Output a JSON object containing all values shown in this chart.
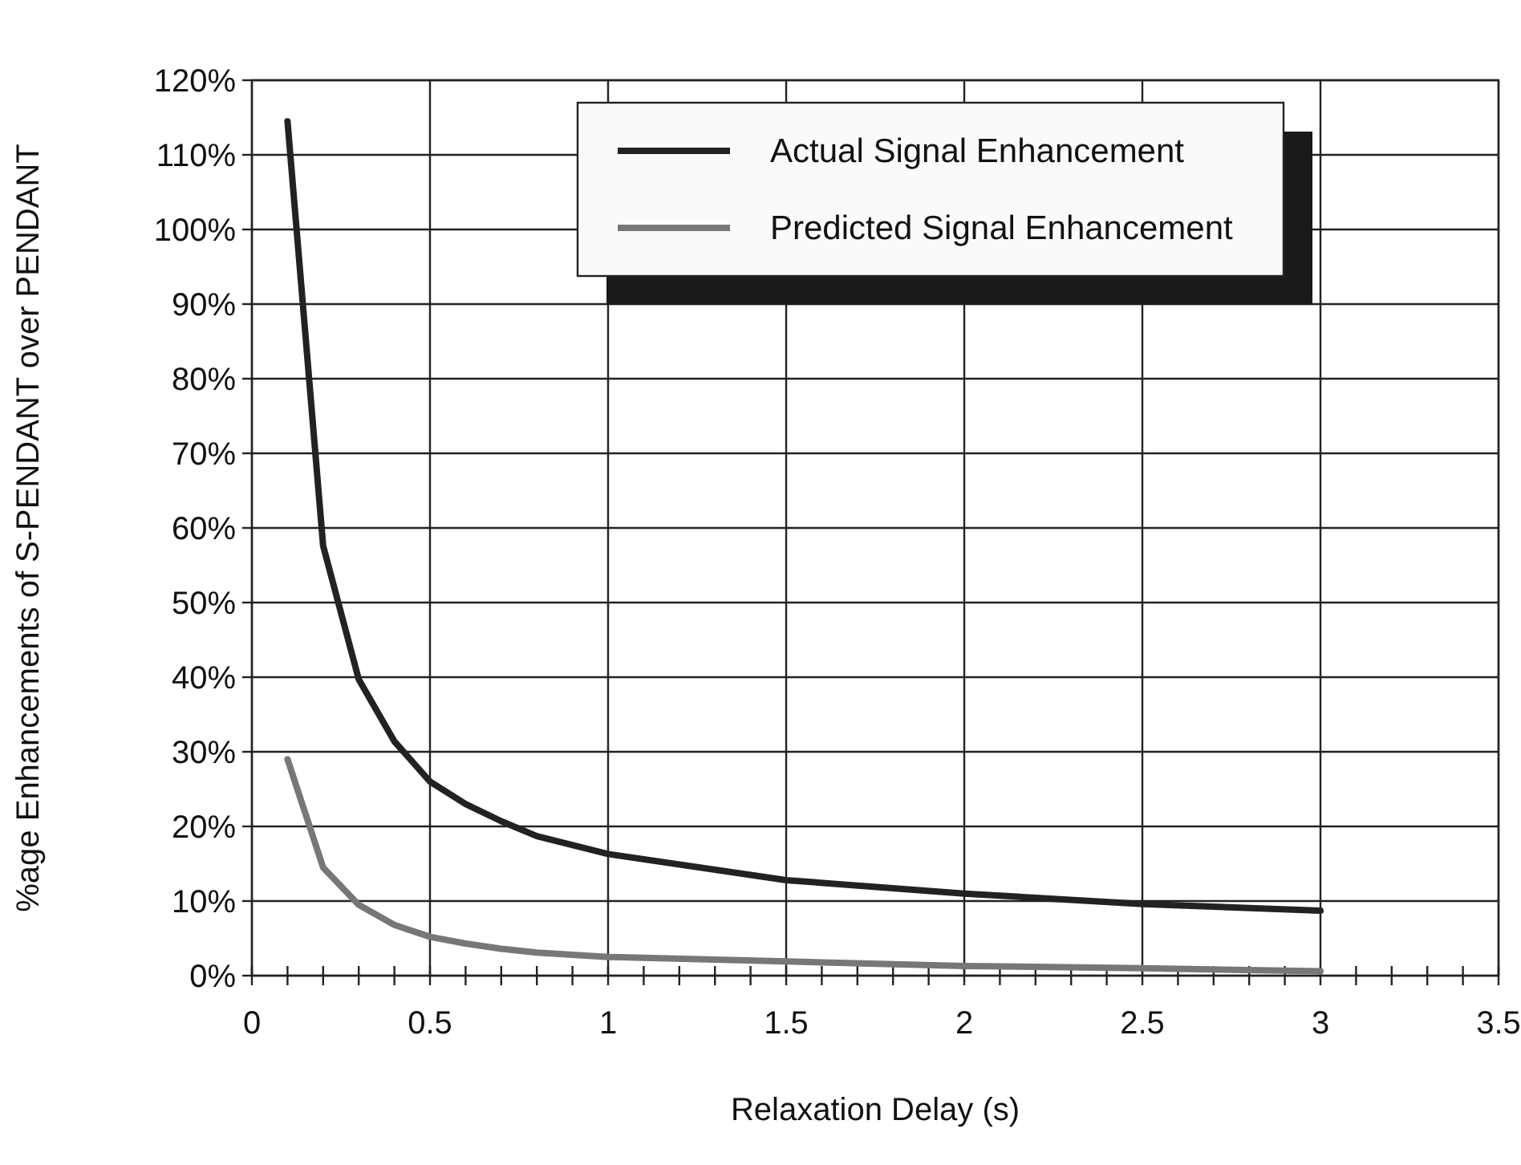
{
  "chart_data": {
    "type": "line",
    "xlabel": "Relaxation Delay (s)",
    "ylabel": "%age Enhancements of S-PENDANT over PENDANT",
    "x": [
      0.1,
      0.2,
      0.3,
      0.4,
      0.5,
      0.6,
      0.7,
      0.8,
      1,
      1.5,
      2,
      2.5,
      3
    ],
    "series": [
      {
        "name": "Actual Signal Enhancement",
        "color": "#222222",
        "values": [
          114.5,
          57.6,
          39.7,
          31.4,
          26,
          23,
          20.7,
          18.7,
          16.3,
          12.8,
          11,
          9.6,
          8.7
        ]
      },
      {
        "name": "Predicted Signal Enhancement",
        "color": "#777777",
        "values": [
          29,
          14.5,
          9.5,
          6.8,
          5.2,
          4.3,
          3.6,
          3.1,
          2.5,
          1.9,
          1.3,
          1,
          0.6
        ]
      }
    ],
    "xlim": [
      0,
      3.5
    ],
    "xticks": [
      0,
      {
        "value": 0.1,
        "label": null
      },
      {
        "value": 0.2,
        "label": null
      },
      {
        "value": 0.3,
        "label": null
      },
      {
        "value": 0.4,
        "label": null
      },
      0.5,
      {
        "value": 0.6,
        "label": null
      },
      {
        "value": 0.7,
        "label": null
      },
      {
        "value": 0.8,
        "label": null
      },
      {
        "value": 0.9,
        "label": null
      },
      1,
      {
        "value": 1.1,
        "label": null
      },
      {
        "value": 1.2,
        "label": null
      },
      {
        "value": 1.3,
        "label": null
      },
      {
        "value": 1.4,
        "label": null
      },
      1.5,
      {
        "value": 1.6,
        "label": null
      },
      {
        "value": 1.7,
        "label": null
      },
      {
        "value": 1.8,
        "label": null
      },
      {
        "value": 1.9,
        "label": null
      },
      2,
      {
        "value": 2.1,
        "label": null
      },
      {
        "value": 2.2,
        "label": null
      },
      {
        "value": 2.3,
        "label": null
      },
      {
        "value": 2.4,
        "label": null
      },
      2.5,
      {
        "value": 2.6,
        "label": null
      },
      {
        "value": 2.7,
        "label": null
      },
      {
        "value": 2.8,
        "label": null
      },
      {
        "value": 2.9,
        "label": null
      },
      3,
      {
        "value": 3.1,
        "label": null
      },
      {
        "value": 3.2,
        "label": null
      },
      {
        "value": 3.3,
        "label": null
      },
      {
        "value": 3.4,
        "label": null
      },
      3.5
    ],
    "ylim": [
      0,
      120
    ],
    "yticks": [
      {
        "value": 0,
        "label": "0%"
      },
      {
        "value": 10,
        "label": "10%"
      },
      {
        "value": 20,
        "label": "20%"
      },
      {
        "value": 30,
        "label": "30%"
      },
      {
        "value": 40,
        "label": "40%"
      },
      {
        "value": 50,
        "label": "50%"
      },
      {
        "value": 60,
        "label": "60%"
      },
      {
        "value": 70,
        "label": "70%"
      },
      {
        "value": 80,
        "label": "80%"
      },
      {
        "value": 90,
        "label": "90%"
      },
      {
        "value": 100,
        "label": "100%"
      },
      {
        "value": 110,
        "label": "110%"
      },
      {
        "value": 120,
        "label": "120%"
      }
    ],
    "grid": true,
    "legend": "top right",
    "marker": "none",
    "line_style": "solid"
  }
}
